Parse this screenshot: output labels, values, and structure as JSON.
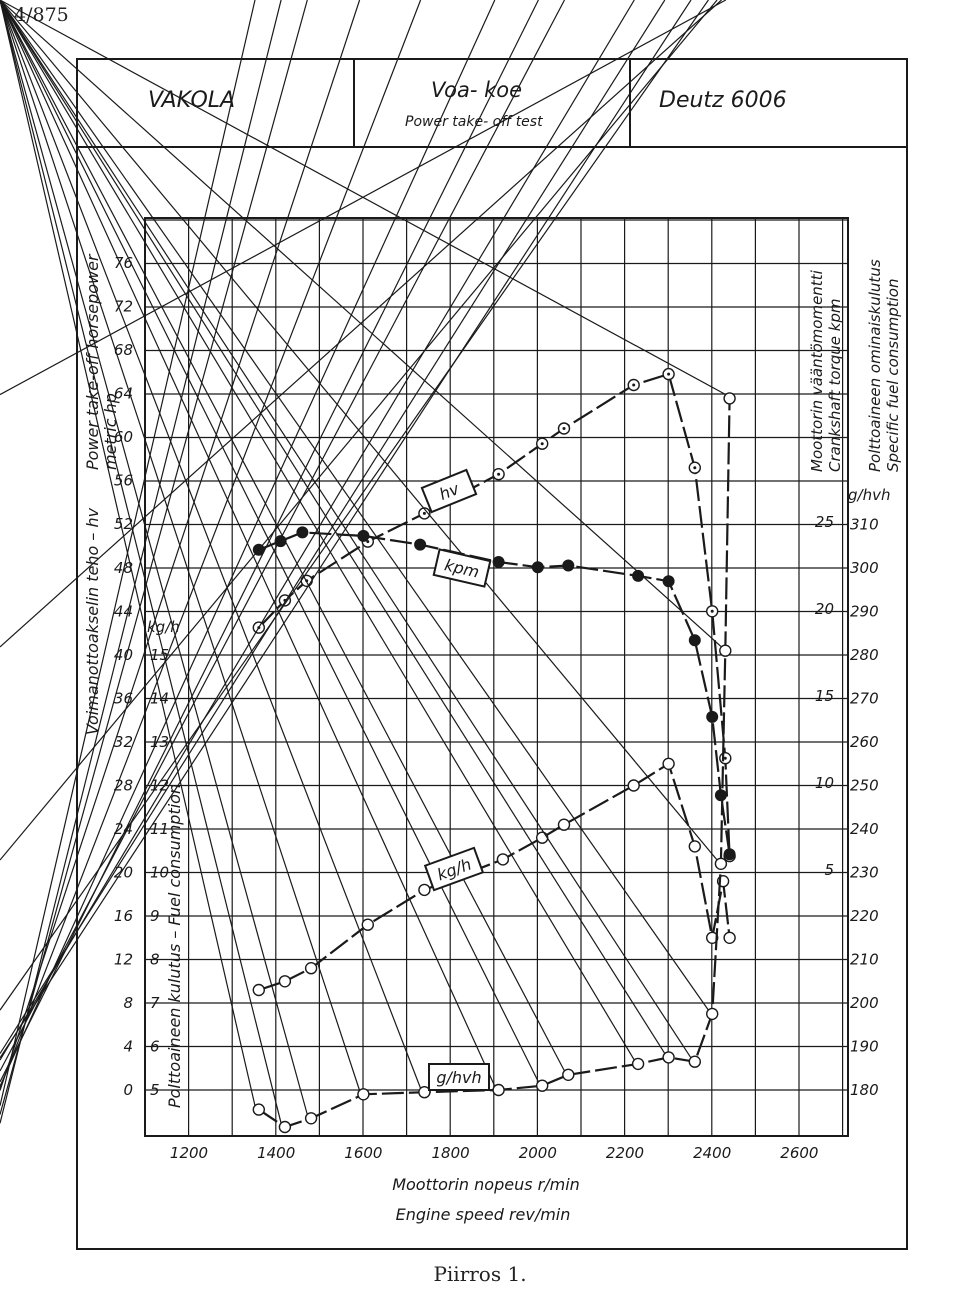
{
  "page": {
    "number": "4/875",
    "caption": "Piirros 1."
  },
  "header": {
    "org": "VAKOLA",
    "test_title": "Voa- koe",
    "test_subtitle": "Power take- off test",
    "model": "Deutz  6006"
  },
  "chart_data": {
    "type": "line",
    "title": "Voa- koe / Power take-off test — Deutz 6006",
    "xlabel": "Moottorin nopeus r/min",
    "xlabel_en": "Engine speed rev/min",
    "xlim": [
      1080,
      2740
    ],
    "x_ticks": [
      1200,
      1400,
      1600,
      1800,
      2000,
      2200,
      2400,
      2600
    ],
    "grid": true,
    "axes": {
      "hp": {
        "label_fi": "Voimanottoakselin teho  –  hv",
        "label_en": "Power take-off horsepower",
        "label_en2": "metric hp",
        "ticks": [
          0,
          4,
          8,
          12,
          16,
          20,
          24,
          28,
          32,
          36,
          40,
          44,
          48,
          52,
          56,
          60,
          64,
          68,
          72,
          76
        ]
      },
      "fuel": {
        "unit": "kg/h",
        "label_fi": "Polttoaineen kulutus  –  Fuel consumption",
        "ticks": [
          5,
          6,
          7,
          8,
          9,
          10,
          11,
          12,
          13,
          14,
          15
        ]
      },
      "torque": {
        "label_fi": "Moottorin vääntömomentti",
        "label_en": "Crankshaft torque  kpm",
        "ticks": [
          5,
          10,
          15,
          20,
          25
        ]
      },
      "sfc": {
        "unit": "g/hvh",
        "label_fi": "Polttoaineen ominaiskulutus",
        "label_en": "Specific fuel consumption",
        "ticks": [
          180,
          190,
          200,
          210,
          220,
          230,
          240,
          250,
          260,
          270,
          280,
          290,
          300,
          310
        ]
      }
    },
    "series": [
      {
        "name": "hv",
        "axis": "hp",
        "marker": "dot-circle",
        "x": [
          1360,
          1420,
          1470,
          1610,
          1740,
          1910,
          2010,
          2060,
          2220,
          2300,
          2360,
          2400,
          2430,
          2440
        ],
        "y": [
          42.5,
          45,
          46.8,
          50.4,
          53,
          56.6,
          59.4,
          60.8,
          64.8,
          65.8,
          57.2,
          44,
          30.5,
          21.5
        ]
      },
      {
        "name": "kpm",
        "axis": "torque",
        "marker": "filled",
        "x": [
          1360,
          1410,
          1460,
          1600,
          1730,
          1910,
          2000,
          2070,
          2230,
          2300,
          2360,
          2400,
          2420,
          2440
        ],
        "y": [
          23.4,
          23.9,
          24.4,
          24.2,
          23.7,
          22.7,
          22.4,
          22.5,
          21.9,
          21.6,
          18.2,
          13.8,
          9.3,
          5.9
        ]
      },
      {
        "name": "kg/h",
        "axis": "fuel",
        "marker": "open",
        "x": [
          1360,
          1420,
          1480,
          1610,
          1740,
          1920,
          2010,
          2060,
          2220,
          2300,
          2360,
          2400,
          2425,
          2440
        ],
        "y": [
          7.3,
          7.5,
          7.8,
          8.8,
          9.6,
          10.3,
          10.8,
          11.1,
          12.0,
          12.5,
          10.6,
          8.5,
          9.8,
          8.5
        ]
      },
      {
        "name": "g/hvh",
        "axis": "sfc",
        "marker": "cross-circle",
        "x": [
          1360,
          1420,
          1480,
          1600,
          1740,
          1910,
          2010,
          2070,
          2230,
          2300,
          2360,
          2400,
          2420,
          2430,
          2440
        ],
        "y": [
          175.5,
          171.5,
          173.5,
          179,
          179.5,
          180,
          181,
          183.5,
          186,
          187.5,
          186.5,
          197.5,
          232,
          281,
          339
        ]
      }
    ],
    "curve_labels": [
      "hv",
      "kpm",
      "kg/h",
      "g/hvh"
    ]
  }
}
